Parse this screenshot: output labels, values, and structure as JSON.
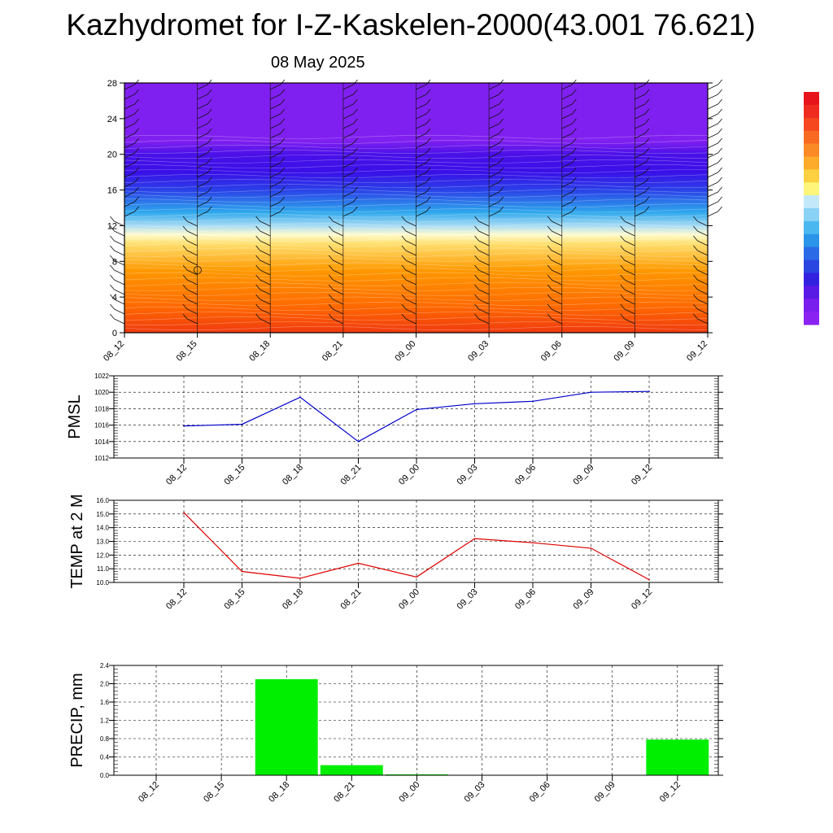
{
  "title": "Kazhydromet for I-Z-Kaskelen-2000(43.001 76.621)",
  "subtitle": "08 May 2025",
  "chart_data": [
    {
      "type": "heatmap",
      "name": "cross-section",
      "x_categories": [
        "08_12",
        "08_15",
        "08_18",
        "08_21",
        "09_00",
        "09_03",
        "09_06",
        "09_09",
        "09_12"
      ],
      "yticks": [
        0,
        4,
        8,
        12,
        16,
        20,
        24,
        28
      ],
      "ylim": [
        0,
        28
      ],
      "gradient_stops": [
        {
          "level": 0,
          "color": "#f03a10"
        },
        {
          "level": 3,
          "color": "#ff6a00"
        },
        {
          "level": 7,
          "color": "#ff9900"
        },
        {
          "level": 10,
          "color": "#ffe070"
        },
        {
          "level": 11,
          "color": "#fffbd0"
        },
        {
          "level": 12,
          "color": "#a8dcf4"
        },
        {
          "level": 13.5,
          "color": "#2ea8ec"
        },
        {
          "level": 16,
          "color": "#2a40e8"
        },
        {
          "level": 18,
          "color": "#3a10e8"
        },
        {
          "level": 20,
          "color": "#4a10e8"
        },
        {
          "level": 21.5,
          "color": "#8020f0"
        },
        {
          "level": 28,
          "color": "#8020f0"
        }
      ],
      "colorbar": [
        "#e8141c",
        "#ef2a1e",
        "#f5461f",
        "#f86a22",
        "#fa8a26",
        "#fcab2a",
        "#fdd041",
        "#fff57a",
        "#c3e8fa",
        "#8ad2f5",
        "#4ab8ef",
        "#2a94e8",
        "#2a6ae6",
        "#2a46e0",
        "#3222e0",
        "#5a1ae6",
        "#7a1eee",
        "#8a22f2"
      ],
      "grid": false
    },
    {
      "type": "line",
      "name": "PMSL",
      "ylabel": "PMSL",
      "categories": [
        "08_12",
        "08_15",
        "08_18",
        "08_21",
        "09_00",
        "09_03",
        "09_06",
        "09_09",
        "09_12"
      ],
      "values": [
        1015.9,
        1016.1,
        1019.4,
        1014.0,
        1017.9,
        1018.6,
        1018.9,
        1020.0,
        1020.1
      ],
      "yticks": [
        "1012",
        "1014",
        "1016",
        "1018",
        "1020",
        "1022"
      ],
      "ylim": [
        1012,
        1022
      ],
      "color": "#0000cc",
      "grid": true
    },
    {
      "type": "line",
      "name": "TEMP",
      "ylabel": "TEMP at 2 M",
      "categories": [
        "08_12",
        "08_15",
        "08_18",
        "08_21",
        "09_00",
        "09_03",
        "09_06",
        "09_09",
        "09_12"
      ],
      "values": [
        15.1,
        10.8,
        10.3,
        11.4,
        10.4,
        13.2,
        12.9,
        12.5,
        10.2
      ],
      "yticks": [
        "10.0",
        "11.0",
        "12.0",
        "13.0",
        "14.0",
        "15.0",
        "16.0"
      ],
      "ylim": [
        10,
        16
      ],
      "color": "#dd0000",
      "grid": true
    },
    {
      "type": "bar",
      "name": "PRECIP",
      "ylabel": "PRECIP, mm",
      "categories": [
        "08_12",
        "08_15",
        "08_18",
        "08_21",
        "09_00",
        "09_03",
        "09_06",
        "09_09",
        "09_12"
      ],
      "values": [
        0,
        0,
        2.1,
        0.22,
        0.02,
        0,
        0,
        0,
        0.78
      ],
      "yticks": [
        "0.0",
        "0.4",
        "0.8",
        "1.2",
        "1.6",
        "2.0",
        "2.4"
      ],
      "ylim": [
        0,
        2.4
      ],
      "color": "#00ee00",
      "grid": true
    }
  ]
}
